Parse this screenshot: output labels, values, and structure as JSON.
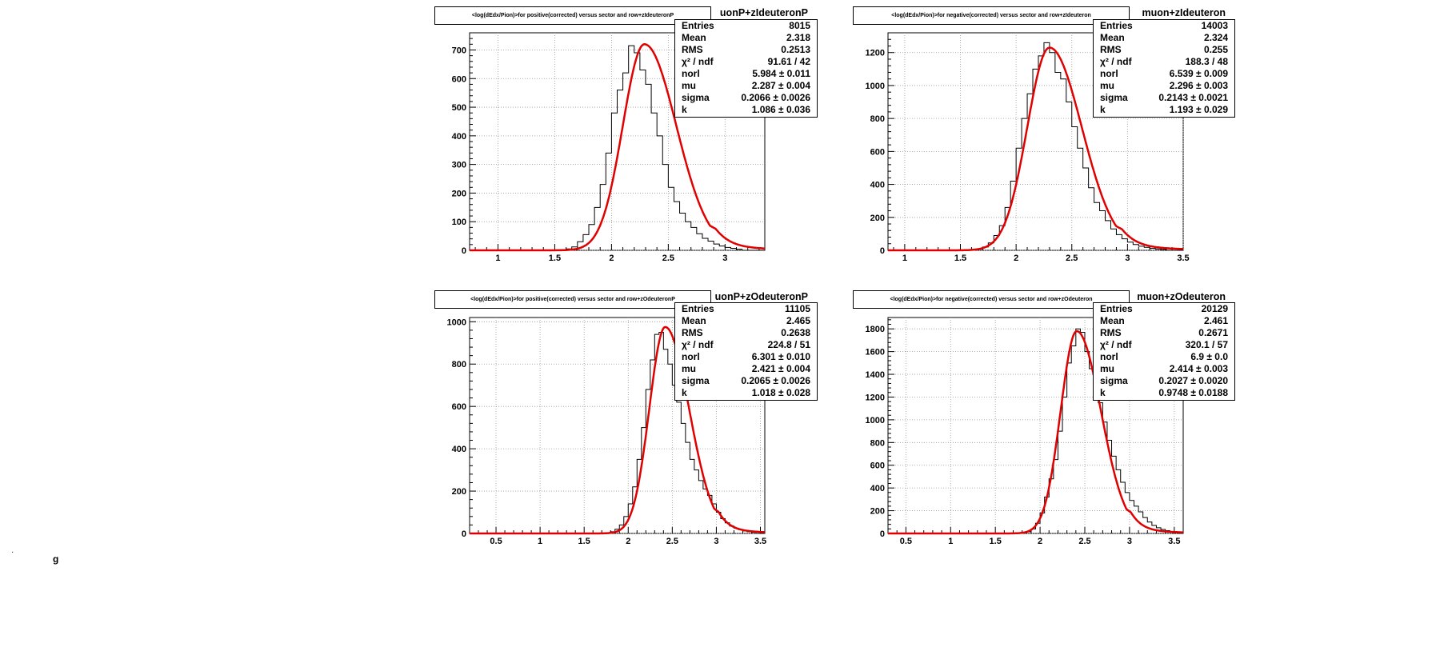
{
  "chart_data": [
    {
      "type": "histogram",
      "title": "<log(dEdx/Pion)>for positive(corrected) versus sector and row+zIdeuteronP",
      "stats_name": "uonP+zIdeuteronP",
      "xlim": [
        0.75,
        3.35
      ],
      "ylim": [
        0,
        760
      ],
      "x_ticks": [
        "1",
        "1.5",
        "2",
        "2.5",
        "3"
      ],
      "y_ticks": [
        "0",
        "100",
        "200",
        "300",
        "400",
        "500",
        "600",
        "700"
      ],
      "x_tick_values": [
        1,
        1.5,
        2,
        2.5,
        3
      ],
      "y_tick_values": [
        0,
        100,
        200,
        300,
        400,
        500,
        600,
        700
      ],
      "stats": [
        {
          "key": "Entries",
          "value": "8015"
        },
        {
          "key": "Mean",
          "value": "2.318"
        },
        {
          "key": "RMS",
          "value": "0.2513"
        },
        {
          "key": "χ² / ndf",
          "value": "91.61 / 42"
        },
        {
          "key": "norl",
          "value": "5.984 ± 0.011"
        },
        {
          "key": "mu",
          "value": "2.287 ± 0.004"
        },
        {
          "key": "sigma",
          "value": "0.2066 ± 0.0026"
        },
        {
          "key": "k",
          "value": "1.086 ± 0.036"
        }
      ],
      "fit": {
        "peak_x": 2.29,
        "peak_y": 720,
        "sigma_left": 0.19,
        "sigma_right": 0.28,
        "tail": 1.35
      },
      "hist": {
        "start": 1.5,
        "width": 0.05,
        "counts": [
          0,
          2,
          5,
          12,
          30,
          55,
          90,
          150,
          230,
          340,
          480,
          560,
          620,
          715,
          690,
          630,
          580,
          480,
          400,
          300,
          220,
          170,
          130,
          100,
          80,
          58,
          42,
          32,
          22,
          15,
          10,
          7,
          4
        ]
      }
    },
    {
      "type": "histogram",
      "title": "<log(dEdx/Pion)>for negative(corrected) versus sector and row+zIdeuteron",
      "stats_name": "muon+zIdeuteron",
      "xlim": [
        0.85,
        3.5
      ],
      "ylim": [
        0,
        1320
      ],
      "x_ticks": [
        "1",
        "1.5",
        "2",
        "2.5",
        "3",
        "3.5"
      ],
      "y_ticks": [
        "0",
        "200",
        "400",
        "600",
        "800",
        "1000",
        "1200"
      ],
      "x_tick_values": [
        1,
        1.5,
        2,
        2.5,
        3,
        3.5
      ],
      "y_tick_values": [
        0,
        200,
        400,
        600,
        800,
        1000,
        1200
      ],
      "stats": [
        {
          "key": "Entries",
          "value": "14003"
        },
        {
          "key": "Mean",
          "value": "2.324"
        },
        {
          "key": "RMS",
          "value": "0.255"
        },
        {
          "key": "χ² / ndf",
          "value": "188.3 / 48"
        },
        {
          "key": "norl",
          "value": "6.539 ± 0.009"
        },
        {
          "key": "mu",
          "value": "2.296 ± 0.003"
        },
        {
          "key": "sigma",
          "value": "0.2143 ± 0.0021"
        },
        {
          "key": "k",
          "value": "1.193 ± 0.029"
        }
      ],
      "fit": {
        "peak_x": 2.3,
        "peak_y": 1230,
        "sigma_left": 0.2,
        "sigma_right": 0.29,
        "tail": 1.35
      },
      "hist": {
        "start": 1.6,
        "width": 0.05,
        "counts": [
          3,
          8,
          20,
          45,
          90,
          150,
          260,
          420,
          620,
          800,
          950,
          1100,
          1180,
          1260,
          1200,
          1080,
          1040,
          900,
          750,
          620,
          500,
          380,
          290,
          240,
          180,
          130,
          95,
          70,
          50,
          35,
          25,
          18,
          12,
          8,
          5
        ]
      }
    },
    {
      "type": "histogram",
      "title": "<log(dEdx/Pion)>for positive(corrected) versus sector and row+zOdeuteronP",
      "stats_name": "uonP+zOdeuteronP",
      "xlim": [
        0.2,
        3.55
      ],
      "ylim": [
        0,
        1020
      ],
      "x_ticks": [
        "0.5",
        "1",
        "1.5",
        "2",
        "2.5",
        "3",
        "3.5"
      ],
      "y_ticks": [
        "0",
        "200",
        "400",
        "600",
        "800",
        "1000"
      ],
      "x_tick_values": [
        0.5,
        1,
        1.5,
        2,
        2.5,
        3,
        3.5
      ],
      "y_tick_values": [
        0,
        200,
        400,
        600,
        800,
        1000
      ],
      "stats": [
        {
          "key": "Entries",
          "value": "11105"
        },
        {
          "key": "Mean",
          "value": "2.465"
        },
        {
          "key": "RMS",
          "value": "0.2638"
        },
        {
          "key": "χ² / ndf",
          "value": "224.8 / 51"
        },
        {
          "key": "norl",
          "value": "6.301 ± 0.010"
        },
        {
          "key": "mu",
          "value": "2.421 ± 0.004"
        },
        {
          "key": "sigma",
          "value": "0.2065 ± 0.0026"
        },
        {
          "key": "k",
          "value": "1.018 ± 0.028"
        }
      ],
      "fit": {
        "peak_x": 2.42,
        "peak_y": 975,
        "sigma_left": 0.18,
        "sigma_right": 0.27,
        "tail": 1.35
      },
      "hist": {
        "start": 1.75,
        "width": 0.05,
        "counts": [
          2,
          8,
          20,
          40,
          80,
          140,
          220,
          350,
          500,
          680,
          820,
          940,
          950,
          870,
          800,
          700,
          620,
          520,
          430,
          350,
          300,
          250,
          210,
          180,
          140,
          100,
          70,
          50,
          35,
          25,
          18,
          12,
          8,
          5
        ]
      }
    },
    {
      "type": "histogram",
      "title": "<log(dEdx/Pion)>for negative(corrected) versus sector and row+zOdeuteron",
      "stats_name": "muon+zOdeuteron",
      "xlim": [
        0.3,
        3.6
      ],
      "ylim": [
        0,
        1900
      ],
      "x_ticks": [
        "0.5",
        "1",
        "1.5",
        "2",
        "2.5",
        "3",
        "3.5"
      ],
      "y_ticks": [
        "0",
        "200",
        "400",
        "600",
        "800",
        "1000",
        "1200",
        "1400",
        "1600",
        "1800"
      ],
      "x_tick_values": [
        0.5,
        1,
        1.5,
        2,
        2.5,
        3,
        3.5
      ],
      "y_tick_values": [
        0,
        200,
        400,
        600,
        800,
        1000,
        1200,
        1400,
        1600,
        1800
      ],
      "stats": [
        {
          "key": "Entries",
          "value": "20129"
        },
        {
          "key": "Mean",
          "value": "2.461"
        },
        {
          "key": "RMS",
          "value": "0.2671"
        },
        {
          "key": "χ² / ndf",
          "value": "320.1 / 57"
        },
        {
          "key": "norl",
          "value": "6.9 ± 0.0"
        },
        {
          "key": "mu",
          "value": "2.414 ± 0.003"
        },
        {
          "key": "sigma",
          "value": "0.2027 ± 0.0020"
        },
        {
          "key": "k",
          "value": "0.9748 ± 0.0188"
        }
      ],
      "fit": {
        "peak_x": 2.41,
        "peak_y": 1780,
        "sigma_left": 0.18,
        "sigma_right": 0.27,
        "tail": 1.35
      },
      "hist": {
        "start": 1.8,
        "width": 0.05,
        "counts": [
          5,
          15,
          40,
          90,
          180,
          320,
          480,
          650,
          900,
          1200,
          1500,
          1650,
          1800,
          1770,
          1600,
          1450,
          1300,
          1150,
          980,
          820,
          680,
          560,
          450,
          360,
          290,
          240,
          190,
          140,
          100,
          70,
          50,
          35,
          25,
          15,
          8
        ]
      }
    }
  ],
  "footer": {
    "stray_mark": "·",
    "stray_glyph": "g"
  }
}
